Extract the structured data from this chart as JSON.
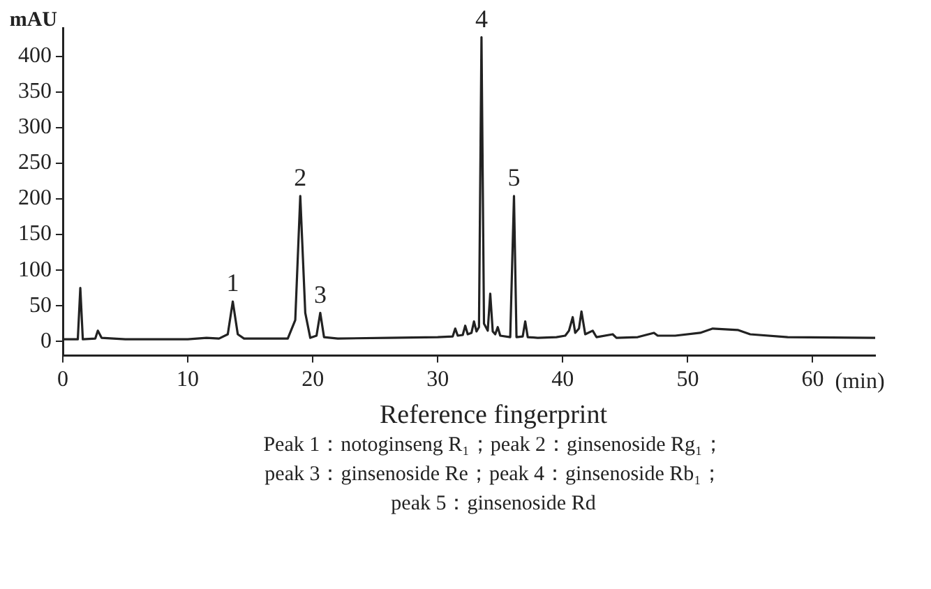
{
  "chart_data": {
    "type": "line",
    "title": "Reference fingerprint",
    "xlabel": "(min)",
    "ylabel": "mAU",
    "xlim": [
      0,
      65
    ],
    "xticks": [
      0,
      10,
      20,
      30,
      40,
      50,
      60
    ],
    "ylim": [
      -20,
      440
    ],
    "yticks": [
      0,
      50,
      100,
      150,
      200,
      250,
      300,
      350,
      400
    ],
    "legend": false,
    "marker": "none",
    "line_style": "solid",
    "series": [
      {
        "color": "#222222",
        "x": [
          0,
          1.2,
          1.4,
          1.6,
          2.6,
          2.8,
          3.1,
          5,
          10,
          11.5,
          12.5,
          13.2,
          13.6,
          14,
          14.5,
          18,
          18.6,
          19.0,
          19.4,
          19.8,
          20.3,
          20.6,
          20.9,
          22,
          26,
          30,
          31.2,
          31.4,
          31.6,
          32.0,
          32.2,
          32.4,
          32.7,
          32.9,
          33.1,
          33.3,
          33.5,
          33.7,
          34.0,
          34.2,
          34.4,
          34.6,
          34.8,
          35.0,
          35.8,
          36.1,
          36.3,
          36.8,
          37.0,
          37.2,
          38,
          39.5,
          40.2,
          40.5,
          40.8,
          41.0,
          41.3,
          41.5,
          41.8,
          42.4,
          42.7,
          44,
          44.3,
          46,
          47.3,
          47.6,
          49,
          51,
          52,
          53,
          54,
          55,
          58,
          65
        ],
        "values": [
          3,
          3,
          75,
          3,
          4,
          15,
          5,
          3,
          3,
          5,
          4,
          10,
          56,
          10,
          4,
          4,
          30,
          204,
          40,
          5,
          8,
          40,
          6,
          4,
          5,
          6,
          7,
          18,
          8,
          9,
          22,
          10,
          12,
          28,
          14,
          20,
          427,
          25,
          15,
          67,
          14,
          10,
          20,
          8,
          6,
          204,
          6,
          7,
          28,
          6,
          5,
          6,
          8,
          15,
          34,
          12,
          18,
          42,
          10,
          15,
          6,
          10,
          5,
          6,
          12,
          8,
          8,
          12,
          18,
          17,
          16,
          10,
          6,
          5
        ]
      }
    ],
    "annotations": [
      {
        "text": "1",
        "x": 13.6,
        "y": 56
      },
      {
        "text": "2",
        "x": 19.0,
        "y": 204
      },
      {
        "text": "3",
        "x": 20.6,
        "y": 40
      },
      {
        "text": "4",
        "x": 33.5,
        "y": 427
      },
      {
        "text": "5",
        "x": 36.1,
        "y": 204
      },
      "Peak 1：notoginseng R₁；peak 2：ginsenoside Rg₁；",
      "peak 3：ginsenoside Re；peak 4：ginsenoside Rb₁；",
      "peak 5：ginsenoside Rd"
    ]
  }
}
